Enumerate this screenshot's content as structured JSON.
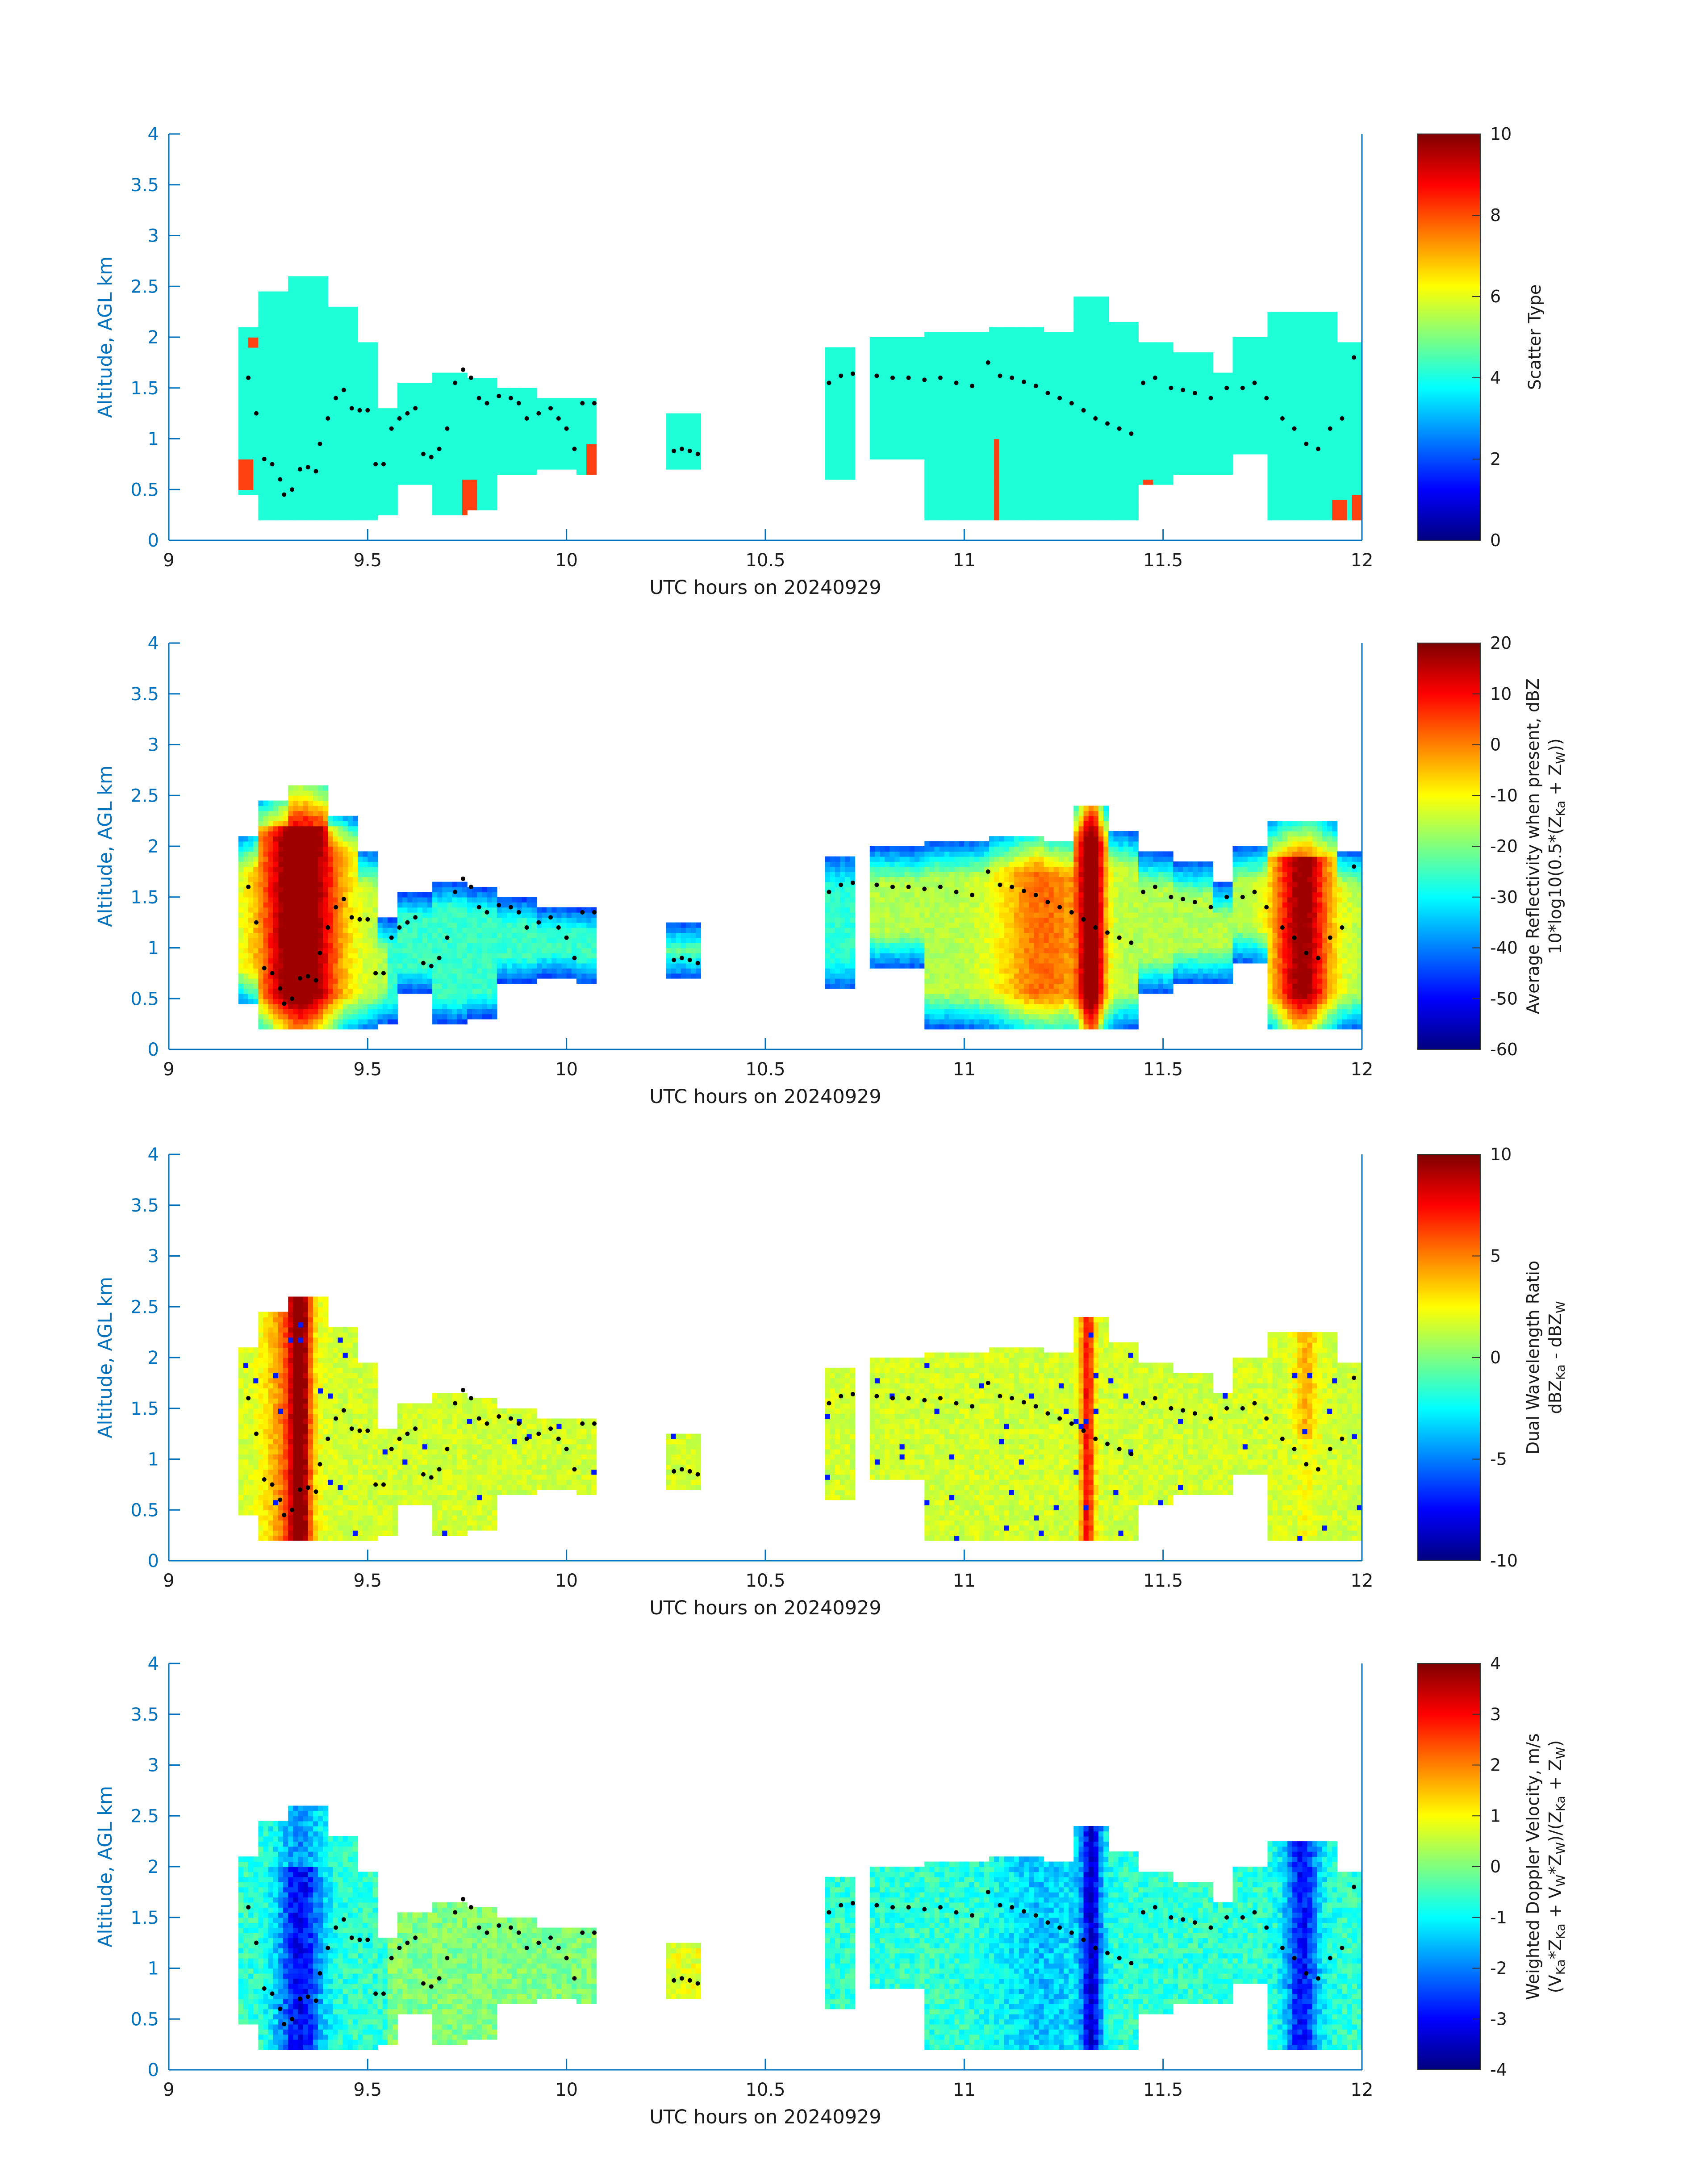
{
  "figure": {
    "colors": {
      "axis": "#0072bd",
      "text": "#1a1a1a",
      "marker": "#000000",
      "scatter_fill": "#1fffd7",
      "scatter_spike": "#ff4010"
    }
  },
  "chart_data": [
    {
      "type": "heatmap",
      "xlabel": "UTC hours on 20240929",
      "ylabel": "Altitude, AGL km",
      "xlim": [
        9,
        12
      ],
      "ylim": [
        0,
        4
      ],
      "xticks": [
        "9",
        "9.5",
        "10",
        "10.5",
        "11",
        "11.5",
        "12"
      ],
      "yticks": [
        "0",
        "0.5",
        "1",
        "1.5",
        "2",
        "2.5",
        "3",
        "3.5",
        "4"
      ],
      "colorbar": {
        "label_lines": [
          "Scatter Type"
        ],
        "range": [
          0,
          10
        ],
        "ticks": [
          "0",
          "2",
          "4",
          "6",
          "8",
          "10"
        ]
      },
      "value_note": "Mostly scatter type ~4; isolated columns ~8",
      "cloud_layers": [
        {
          "x": [
            9.17,
            9.52
          ],
          "y": [
            0.2,
            2.6
          ]
        },
        {
          "x": [
            9.55,
            10.08
          ],
          "y": [
            0.2,
            1.7
          ]
        },
        {
          "x": [
            10.25,
            10.34
          ],
          "y": [
            0.7,
            1.25
          ]
        },
        {
          "x": [
            10.65,
            12.0
          ],
          "y": [
            0.2,
            2.3
          ]
        }
      ]
    },
    {
      "type": "heatmap",
      "xlabel": "UTC hours on 20240929",
      "ylabel": "Altitude, AGL km",
      "xlim": [
        9,
        12
      ],
      "ylim": [
        0,
        4
      ],
      "xticks": [
        "9",
        "9.5",
        "10",
        "10.5",
        "11",
        "11.5",
        "12"
      ],
      "yticks": [
        "0",
        "0.5",
        "1",
        "1.5",
        "2",
        "2.5",
        "3",
        "3.5",
        "4"
      ],
      "colorbar": {
        "label_lines": [
          "Average Reflectivity when present, dBZ",
          "10*log10(0.5*(Z",
          "Ka",
          " + Z",
          "W",
          "))"
        ],
        "range": [
          -60,
          20
        ],
        "ticks": [
          "-60",
          "-50",
          "-40",
          "-30",
          "-20",
          "-10",
          "0",
          "10",
          "20"
        ]
      },
      "value_note": "Cores up to ~10 dBZ near 9.3 h, 11.3 h and 11.85 h; edges near -50 dBZ"
    },
    {
      "type": "heatmap",
      "xlabel": "UTC hours on 20240929",
      "ylabel": "Altitude, AGL km",
      "xlim": [
        9,
        12
      ],
      "ylim": [
        0,
        4
      ],
      "xticks": [
        "9",
        "9.5",
        "10",
        "10.5",
        "11",
        "11.5",
        "12"
      ],
      "yticks": [
        "0",
        "0.5",
        "1",
        "1.5",
        "2",
        "2.5",
        "3",
        "3.5",
        "4"
      ],
      "colorbar": {
        "label_lines": [
          "Dual Wavelength Ratio",
          "dBZ",
          "Ka",
          " - dBZ",
          "W"
        ],
        "range": [
          -10,
          10
        ],
        "ticks": [
          "-10",
          "-5",
          "0",
          "5",
          "10"
        ]
      },
      "value_note": "Mostly ~1-3 dB; dark red column ~10 dB near 9.33 h"
    },
    {
      "type": "heatmap",
      "xlabel": "UTC hours on 20240929",
      "ylabel": "Altitude, AGL km",
      "xlim": [
        9,
        12
      ],
      "ylim": [
        0,
        4
      ],
      "xticks": [
        "9",
        "9.5",
        "10",
        "10.5",
        "11",
        "11.5",
        "12"
      ],
      "yticks": [
        "0",
        "0.5",
        "1",
        "1.5",
        "2",
        "2.5",
        "3",
        "3.5",
        "4"
      ],
      "colorbar": {
        "label_lines": [
          "Weighted Doppler Velocity, m/s",
          "(V",
          "Ka",
          "*Z",
          "Ka",
          " + V",
          "W",
          "*Z",
          "W",
          ")/(Z",
          "Ka",
          " + Z",
          "W",
          ")"
        ],
        "range": [
          -4,
          4
        ],
        "ticks": [
          "-4",
          "-3",
          "-2",
          "-1",
          "0",
          "1",
          "2",
          "3",
          "4"
        ]
      },
      "value_note": "Mostly -1 to 0 m/s; down to ~-3.5 m/s in cores"
    }
  ],
  "markers": {
    "description": "black dots (cloud-base estimate)",
    "points": [
      [
        9.2,
        1.6
      ],
      [
        9.22,
        1.25
      ],
      [
        9.24,
        0.8
      ],
      [
        9.26,
        0.75
      ],
      [
        9.28,
        0.6
      ],
      [
        9.29,
        0.45
      ],
      [
        9.31,
        0.5
      ],
      [
        9.33,
        0.7
      ],
      [
        9.35,
        0.72
      ],
      [
        9.37,
        0.68
      ],
      [
        9.38,
        0.95
      ],
      [
        9.4,
        1.2
      ],
      [
        9.42,
        1.4
      ],
      [
        9.44,
        1.48
      ],
      [
        9.46,
        1.3
      ],
      [
        9.48,
        1.28
      ],
      [
        9.5,
        1.28
      ],
      [
        9.52,
        0.75
      ],
      [
        9.54,
        0.75
      ],
      [
        9.56,
        1.1
      ],
      [
        9.58,
        1.2
      ],
      [
        9.6,
        1.25
      ],
      [
        9.62,
        1.3
      ],
      [
        9.64,
        0.85
      ],
      [
        9.66,
        0.82
      ],
      [
        9.68,
        0.9
      ],
      [
        9.7,
        1.1
      ],
      [
        9.72,
        1.55
      ],
      [
        9.74,
        1.68
      ],
      [
        9.76,
        1.6
      ],
      [
        9.78,
        1.4
      ],
      [
        9.8,
        1.35
      ],
      [
        9.83,
        1.42
      ],
      [
        9.86,
        1.4
      ],
      [
        9.88,
        1.35
      ],
      [
        9.9,
        1.2
      ],
      [
        9.93,
        1.25
      ],
      [
        9.96,
        1.3
      ],
      [
        9.98,
        1.2
      ],
      [
        10.0,
        1.1
      ],
      [
        10.02,
        0.9
      ],
      [
        10.04,
        1.35
      ],
      [
        10.07,
        1.35
      ],
      [
        10.27,
        0.88
      ],
      [
        10.29,
        0.9
      ],
      [
        10.31,
        0.88
      ],
      [
        10.33,
        0.85
      ],
      [
        10.66,
        1.55
      ],
      [
        10.69,
        1.62
      ],
      [
        10.72,
        1.64
      ],
      [
        10.78,
        1.62
      ],
      [
        10.82,
        1.6
      ],
      [
        10.86,
        1.6
      ],
      [
        10.9,
        1.58
      ],
      [
        10.94,
        1.6
      ],
      [
        10.98,
        1.55
      ],
      [
        11.02,
        1.52
      ],
      [
        11.06,
        1.75
      ],
      [
        11.09,
        1.62
      ],
      [
        11.12,
        1.6
      ],
      [
        11.15,
        1.56
      ],
      [
        11.18,
        1.52
      ],
      [
        11.21,
        1.45
      ],
      [
        11.24,
        1.4
      ],
      [
        11.27,
        1.35
      ],
      [
        11.3,
        1.28
      ],
      [
        11.33,
        1.2
      ],
      [
        11.36,
        1.15
      ],
      [
        11.39,
        1.1
      ],
      [
        11.42,
        1.05
      ],
      [
        11.45,
        1.55
      ],
      [
        11.48,
        1.6
      ],
      [
        11.52,
        1.5
      ],
      [
        11.55,
        1.48
      ],
      [
        11.58,
        1.45
      ],
      [
        11.62,
        1.4
      ],
      [
        11.66,
        1.5
      ],
      [
        11.7,
        1.5
      ],
      [
        11.73,
        1.55
      ],
      [
        11.76,
        1.4
      ],
      [
        11.8,
        1.2
      ],
      [
        11.83,
        1.1
      ],
      [
        11.86,
        0.95
      ],
      [
        11.89,
        0.9
      ],
      [
        11.92,
        1.1
      ],
      [
        11.95,
        1.2
      ],
      [
        11.98,
        1.8
      ]
    ]
  }
}
